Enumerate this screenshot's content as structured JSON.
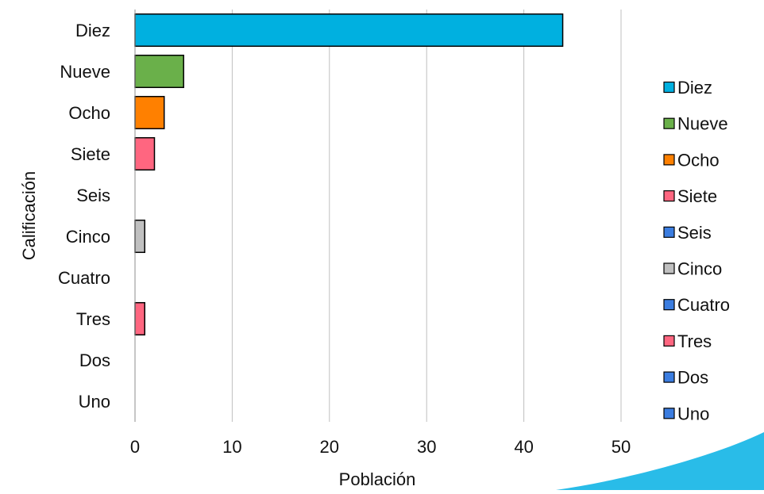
{
  "chart_data": {
    "type": "bar",
    "orientation": "horizontal",
    "categories": [
      "Diez",
      "Nueve",
      "Ocho",
      "Siete",
      "Seis",
      "Cinco",
      "Cuatro",
      "Tres",
      "Dos",
      "Uno"
    ],
    "values": [
      44,
      5,
      3,
      2,
      0,
      1,
      0,
      1,
      0,
      0
    ],
    "colors": [
      "#00B0E0",
      "#6AB04A",
      "#FF8000",
      "#FF6680",
      "#3B7DE0",
      "#C0C0C0",
      "#3B7DE0",
      "#FF6680",
      "#3B7DE0",
      "#3B7DE0"
    ],
    "xlabel": "Población",
    "ylabel": "Calificación",
    "xlim": [
      0,
      50
    ],
    "xticks": [
      0,
      10,
      20,
      30,
      40,
      50
    ],
    "grid": "vertical",
    "legend": {
      "position": "right",
      "entries": [
        "Diez",
        "Nueve",
        "Ocho",
        "Siete",
        "Seis",
        "Cinco",
        "Cuatro",
        "Tres",
        "Dos",
        "Uno"
      ]
    }
  },
  "decoration": {
    "corner_accent_color": "#29BCE8"
  }
}
